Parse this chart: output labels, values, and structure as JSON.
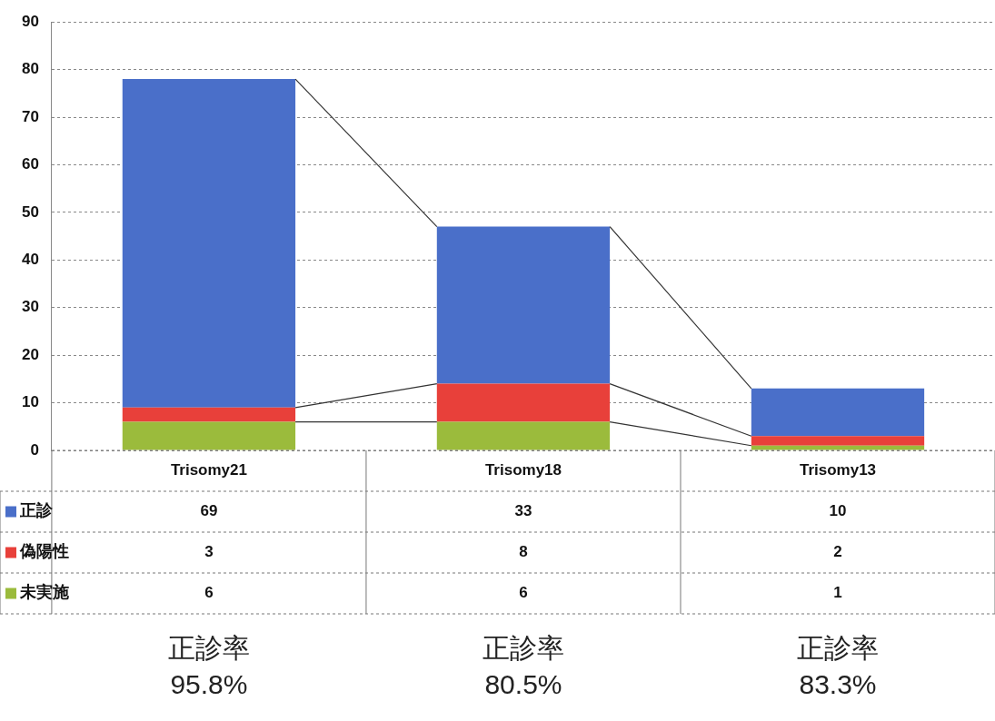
{
  "chart_data": {
    "type": "bar",
    "stacked": true,
    "categories": [
      "Trisomy21",
      "Trisomy18",
      "Trisomy13"
    ],
    "series": [
      {
        "name": "未実施",
        "color": "#9bbb3c",
        "values": [
          6,
          6,
          1
        ]
      },
      {
        "name": "偽陽性",
        "color": "#e8403a",
        "values": [
          3,
          8,
          2
        ]
      },
      {
        "name": "正診",
        "color": "#4a6fc9",
        "values": [
          69,
          33,
          10
        ]
      }
    ],
    "ylim": [
      0,
      90
    ],
    "yticks": [
      0,
      10,
      20,
      30,
      40,
      50,
      60,
      70,
      80,
      90
    ],
    "grid": "y",
    "legend": "bottom left",
    "data_labels": true,
    "annotations": [
      "正診率\n95.8%",
      "正診率\n80.5%",
      "正診率\n83.3%"
    ]
  }
}
